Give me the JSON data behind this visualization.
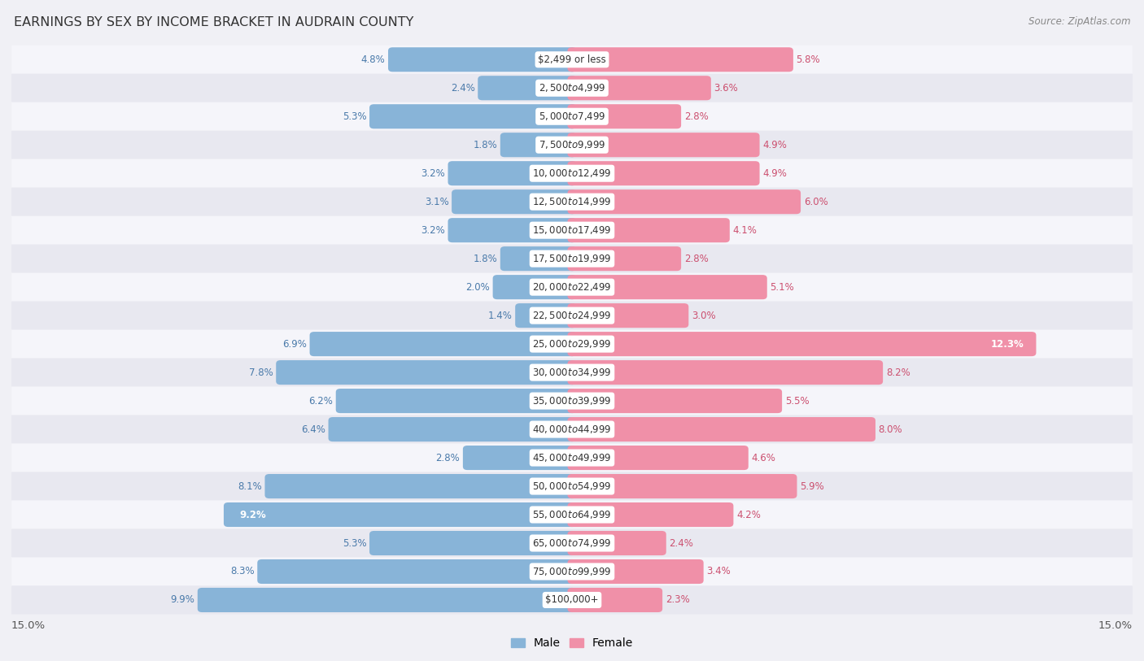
{
  "title": "EARNINGS BY SEX BY INCOME BRACKET IN AUDRAIN COUNTY",
  "source": "Source: ZipAtlas.com",
  "categories": [
    "$2,499 or less",
    "$2,500 to $4,999",
    "$5,000 to $7,499",
    "$7,500 to $9,999",
    "$10,000 to $12,499",
    "$12,500 to $14,999",
    "$15,000 to $17,499",
    "$17,500 to $19,999",
    "$20,000 to $22,499",
    "$22,500 to $24,999",
    "$25,000 to $29,999",
    "$30,000 to $34,999",
    "$35,000 to $39,999",
    "$40,000 to $44,999",
    "$45,000 to $49,999",
    "$50,000 to $54,999",
    "$55,000 to $64,999",
    "$65,000 to $74,999",
    "$75,000 to $99,999",
    "$100,000+"
  ],
  "male_values": [
    4.8,
    2.4,
    5.3,
    1.8,
    3.2,
    3.1,
    3.2,
    1.8,
    2.0,
    1.4,
    6.9,
    7.8,
    6.2,
    6.4,
    2.8,
    8.1,
    9.2,
    5.3,
    8.3,
    9.9
  ],
  "female_values": [
    5.8,
    3.6,
    2.8,
    4.9,
    4.9,
    6.0,
    4.1,
    2.8,
    5.1,
    3.0,
    12.3,
    8.2,
    5.5,
    8.0,
    4.6,
    5.9,
    4.2,
    2.4,
    3.4,
    2.3
  ],
  "male_color": "#88b4d8",
  "female_color": "#f090a8",
  "male_label_color": "#4a7aaa",
  "female_label_color": "#cc5070",
  "row_color_even": "#f5f5fa",
  "row_color_odd": "#e8e8f0",
  "bg_color": "#f0f0f5",
  "label_bg_color": "#ffffff",
  "xlim": 15.0,
  "legend_male": "Male",
  "legend_female": "Female",
  "male_white_label_indices": [
    16
  ],
  "female_white_label_indices": [
    10
  ]
}
